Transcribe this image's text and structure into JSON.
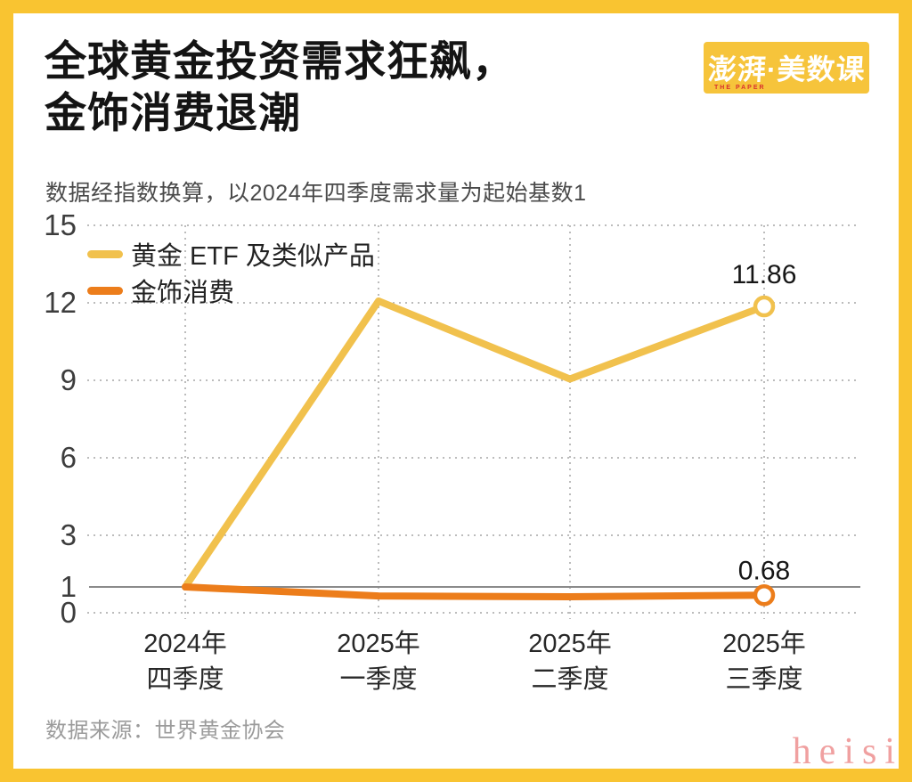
{
  "frame": {
    "border_color": "#F9C431"
  },
  "header": {
    "title_line1": "全球黄金投资需求狂飙，",
    "title_line2": "金饰消费退潮",
    "subtitle": "数据经指数换算，以2024年四季度需求量为起始基数1"
  },
  "logo": {
    "text": "澎湃·美数课",
    "subtext": "THE PAPER",
    "bg_color": "#F6C43B"
  },
  "chart_data": {
    "type": "line",
    "title": "",
    "xlabel": "",
    "ylabel": "",
    "ylim": [
      0,
      15
    ],
    "y_ticks": [
      15,
      12,
      9,
      6,
      3,
      1,
      0
    ],
    "baseline_value": 1,
    "grid": "dotted horizontal gridlines at ticks, solid reference line at 1, dotted vertical gridline at each quarter",
    "legend_position": "top-left inside plot",
    "categories": [
      {
        "line1": "2024年",
        "line2": "四季度"
      },
      {
        "line1": "2025年",
        "line2": "一季度"
      },
      {
        "line1": "2025年",
        "line2": "二季度"
      },
      {
        "line1": "2025年",
        "line2": "三季度"
      }
    ],
    "series": [
      {
        "name": "黄金 ETF 及类似产品",
        "color": "#F1C14D",
        "values": [
          1,
          12.07,
          9.05,
          11.86
        ],
        "end_label": "11.86"
      },
      {
        "name": "金饰消费",
        "color": "#EC7D1B",
        "values": [
          1,
          0.65,
          0.62,
          0.68
        ],
        "end_label": "0.68"
      }
    ]
  },
  "footer": {
    "source": "数据来源：世界黄金协会"
  },
  "watermark": {
    "text": "heisi",
    "color": "#F0A0A0"
  }
}
